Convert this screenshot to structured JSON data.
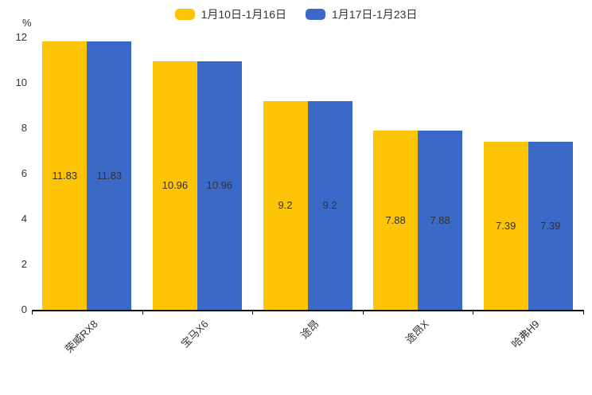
{
  "colors": {
    "series1": "#FCC307",
    "series2": "#3A69C8",
    "axis": "#111111",
    "text": "#333333"
  },
  "legend": {
    "items": [
      {
        "label": "1月10日-1月16日",
        "color": "#FCC307"
      },
      {
        "label": "1月17日-1月23日",
        "color": "#3A69C8"
      }
    ]
  },
  "chart_data": {
    "type": "bar",
    "title": "",
    "categories": [
      "荣威RX8",
      "宝马X6",
      "途昂",
      "途昂X",
      "哈弗H9"
    ],
    "series": [
      {
        "name": "1月10日-1月16日",
        "color": "#FCC307",
        "values": [
          11.83,
          10.96,
          9.2,
          7.88,
          7.39
        ]
      },
      {
        "name": "1月17日-1月23日",
        "color": "#3A69C8",
        "values": [
          11.83,
          10.96,
          9.2,
          7.88,
          7.39
        ]
      }
    ],
    "xlabel": "",
    "ylabel": "%",
    "ylim": [
      0,
      12
    ],
    "yticks": [
      0,
      2,
      4,
      6,
      8,
      10,
      12
    ],
    "grid": false,
    "legend_position": "top",
    "value_labels": "inside-center",
    "x_label_rotation": -45
  }
}
